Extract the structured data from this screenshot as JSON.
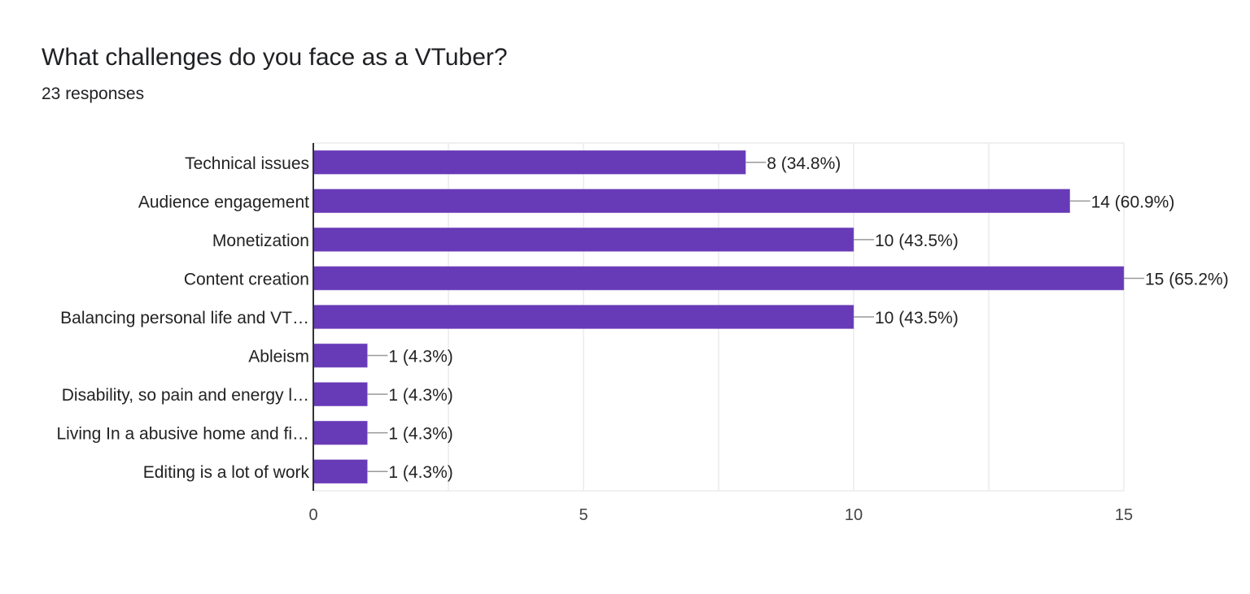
{
  "header": {
    "title": "What challenges do you face as a VTuber?",
    "responses": "23 responses"
  },
  "colors": {
    "bar": "#673ab7",
    "grid": "#ebebeb",
    "axis": "#333333",
    "leader": "#999999",
    "text": "#222222"
  },
  "chart_data": {
    "type": "bar",
    "orientation": "horizontal",
    "title": "What challenges do you face as a VTuber?",
    "categories": [
      "Technical issues",
      "Audience engagement",
      "Monetization",
      "Content creation",
      "Balancing personal life and VT…",
      "Ableism",
      "Disability, so pain and energy l…",
      "Living In a abusive home and fi…",
      "Editing is a lot of work"
    ],
    "values": [
      8,
      14,
      10,
      15,
      10,
      1,
      1,
      1,
      1
    ],
    "data_labels": [
      "8 (34.8%)",
      "14 (60.9%)",
      "10 (43.5%)",
      "15 (65.2%)",
      "10 (43.5%)",
      "1 (4.3%)",
      "1 (4.3%)",
      "1 (4.3%)",
      "1 (4.3%)"
    ],
    "xlim": [
      0,
      15
    ],
    "xticks": [
      "0",
      "5",
      "10",
      "15"
    ],
    "minor_grid_step": 2.5,
    "grid": true,
    "legend": "none",
    "xlabel": "",
    "ylabel": ""
  }
}
